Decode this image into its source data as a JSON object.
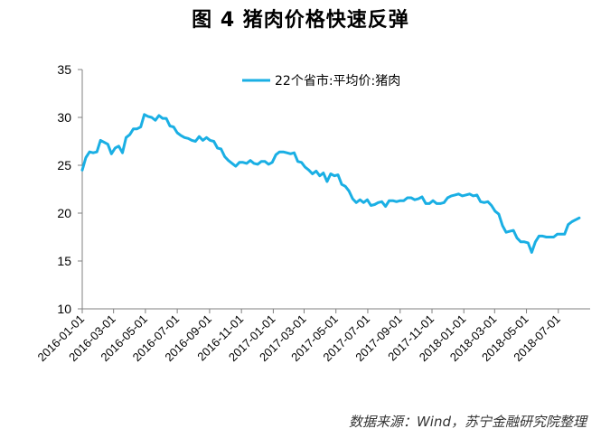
{
  "figure": {
    "title": "图 4  猪肉价格快速反弹",
    "source": "数据来源：Wind，苏宁金融研究院整理"
  },
  "colors": {
    "series": "#1AAFE4",
    "axis": "#808080",
    "text": "#000000"
  },
  "chart_data": {
    "type": "line",
    "title": "图 4  猪肉价格快速反弹",
    "xlabel": "",
    "ylabel": "",
    "ylim": [
      10,
      35
    ],
    "yticks": [
      "35",
      "30",
      "25",
      "20",
      "15",
      "10"
    ],
    "xlim": [
      "2016-01-01",
      "2018-08-31"
    ],
    "xticks": [
      "2016-01-01",
      "2016-03-01",
      "2016-05-01",
      "2016-07-01",
      "2016-09-01",
      "2016-11-01",
      "2017-01-01",
      "2017-03-01",
      "2017-05-01",
      "2017-07-01",
      "2017-09-01",
      "2017-11-01",
      "2018-01-01",
      "2018-03-01",
      "2018-05-01",
      "2018-07-01"
    ],
    "grid": false,
    "legend": "top-center",
    "series": [
      {
        "name": "22个省市:平均价:猪肉",
        "color": "#1AAFE4",
        "points": [
          [
            "2016-01-01",
            24.5
          ],
          [
            "2016-01-08",
            25.8
          ],
          [
            "2016-01-15",
            26.4
          ],
          [
            "2016-01-22",
            26.3
          ],
          [
            "2016-01-29",
            26.4
          ],
          [
            "2016-02-05",
            27.6
          ],
          [
            "2016-02-12",
            27.4
          ],
          [
            "2016-02-19",
            27.2
          ],
          [
            "2016-02-26",
            26.2
          ],
          [
            "2016-03-04",
            26.8
          ],
          [
            "2016-03-11",
            27.0
          ],
          [
            "2016-03-18",
            26.3
          ],
          [
            "2016-03-25",
            27.9
          ],
          [
            "2016-04-01",
            28.2
          ],
          [
            "2016-04-08",
            28.8
          ],
          [
            "2016-04-15",
            28.8
          ],
          [
            "2016-04-22",
            29.0
          ],
          [
            "2016-04-29",
            30.3
          ],
          [
            "2016-05-06",
            30.1
          ],
          [
            "2016-05-13",
            30.0
          ],
          [
            "2016-05-20",
            29.7
          ],
          [
            "2016-05-27",
            30.2
          ],
          [
            "2016-06-03",
            29.9
          ],
          [
            "2016-06-10",
            29.9
          ],
          [
            "2016-06-17",
            29.1
          ],
          [
            "2016-06-24",
            29.0
          ],
          [
            "2016-07-01",
            28.4
          ],
          [
            "2016-07-08",
            28.1
          ],
          [
            "2016-07-15",
            27.9
          ],
          [
            "2016-07-22",
            27.8
          ],
          [
            "2016-07-29",
            27.6
          ],
          [
            "2016-08-05",
            27.5
          ],
          [
            "2016-08-12",
            28.0
          ],
          [
            "2016-08-19",
            27.6
          ],
          [
            "2016-08-26",
            27.9
          ],
          [
            "2016-09-02",
            27.6
          ],
          [
            "2016-09-09",
            27.5
          ],
          [
            "2016-09-16",
            26.8
          ],
          [
            "2016-09-23",
            26.7
          ],
          [
            "2016-09-30",
            25.9
          ],
          [
            "2016-10-07",
            25.5
          ],
          [
            "2016-10-14",
            25.2
          ],
          [
            "2016-10-21",
            24.9
          ],
          [
            "2016-10-28",
            25.3
          ],
          [
            "2016-11-04",
            25.3
          ],
          [
            "2016-11-11",
            25.2
          ],
          [
            "2016-11-18",
            25.5
          ],
          [
            "2016-11-25",
            25.2
          ],
          [
            "2016-12-02",
            25.1
          ],
          [
            "2016-12-09",
            25.4
          ],
          [
            "2016-12-16",
            25.4
          ],
          [
            "2016-12-23",
            25.1
          ],
          [
            "2016-12-30",
            25.3
          ],
          [
            "2017-01-06",
            26.1
          ],
          [
            "2017-01-13",
            26.4
          ],
          [
            "2017-01-20",
            26.4
          ],
          [
            "2017-01-27",
            26.3
          ],
          [
            "2017-02-03",
            26.2
          ],
          [
            "2017-02-10",
            26.3
          ],
          [
            "2017-02-17",
            25.4
          ],
          [
            "2017-02-24",
            25.3
          ],
          [
            "2017-03-03",
            24.8
          ],
          [
            "2017-03-10",
            24.5
          ],
          [
            "2017-03-17",
            24.1
          ],
          [
            "2017-03-24",
            24.4
          ],
          [
            "2017-03-31",
            23.9
          ],
          [
            "2017-04-07",
            24.2
          ],
          [
            "2017-04-14",
            23.3
          ],
          [
            "2017-04-21",
            24.1
          ],
          [
            "2017-04-28",
            23.9
          ],
          [
            "2017-05-05",
            24.0
          ],
          [
            "2017-05-12",
            23.0
          ],
          [
            "2017-05-19",
            22.8
          ],
          [
            "2017-05-26",
            22.3
          ],
          [
            "2017-06-02",
            21.5
          ],
          [
            "2017-06-09",
            21.1
          ],
          [
            "2017-06-16",
            21.4
          ],
          [
            "2017-06-23",
            21.1
          ],
          [
            "2017-06-30",
            21.4
          ],
          [
            "2017-07-07",
            20.8
          ],
          [
            "2017-07-14",
            20.9
          ],
          [
            "2017-07-21",
            21.1
          ],
          [
            "2017-07-28",
            21.2
          ],
          [
            "2017-08-04",
            20.7
          ],
          [
            "2017-08-11",
            21.3
          ],
          [
            "2017-08-18",
            21.3
          ],
          [
            "2017-08-25",
            21.2
          ],
          [
            "2017-09-01",
            21.3
          ],
          [
            "2017-09-08",
            21.3
          ],
          [
            "2017-09-15",
            21.6
          ],
          [
            "2017-09-22",
            21.6
          ],
          [
            "2017-09-29",
            21.4
          ],
          [
            "2017-10-06",
            21.5
          ],
          [
            "2017-10-13",
            21.7
          ],
          [
            "2017-10-20",
            21.0
          ],
          [
            "2017-10-27",
            21.0
          ],
          [
            "2017-11-03",
            21.3
          ],
          [
            "2017-11-10",
            21.0
          ],
          [
            "2017-11-17",
            21.0
          ],
          [
            "2017-11-24",
            21.1
          ],
          [
            "2017-12-01",
            21.6
          ],
          [
            "2017-12-08",
            21.8
          ],
          [
            "2017-12-15",
            21.9
          ],
          [
            "2017-12-22",
            22.0
          ],
          [
            "2017-12-29",
            21.8
          ],
          [
            "2018-01-05",
            21.9
          ],
          [
            "2018-01-12",
            22.0
          ],
          [
            "2018-01-19",
            21.8
          ],
          [
            "2018-01-26",
            21.9
          ],
          [
            "2018-02-02",
            21.2
          ],
          [
            "2018-02-09",
            21.1
          ],
          [
            "2018-02-16",
            21.2
          ],
          [
            "2018-02-23",
            20.8
          ],
          [
            "2018-03-02",
            20.2
          ],
          [
            "2018-03-09",
            19.9
          ],
          [
            "2018-03-16",
            18.7
          ],
          [
            "2018-03-23",
            18.0
          ],
          [
            "2018-03-30",
            18.1
          ],
          [
            "2018-04-06",
            18.2
          ],
          [
            "2018-04-13",
            17.4
          ],
          [
            "2018-04-20",
            17.0
          ],
          [
            "2018-04-27",
            17.0
          ],
          [
            "2018-05-04",
            16.9
          ],
          [
            "2018-05-11",
            15.9
          ],
          [
            "2018-05-18",
            17.0
          ],
          [
            "2018-05-25",
            17.6
          ],
          [
            "2018-06-01",
            17.6
          ],
          [
            "2018-06-08",
            17.5
          ],
          [
            "2018-06-15",
            17.5
          ],
          [
            "2018-06-22",
            17.5
          ],
          [
            "2018-06-29",
            17.8
          ],
          [
            "2018-07-06",
            17.8
          ],
          [
            "2018-07-13",
            17.8
          ],
          [
            "2018-07-20",
            18.8
          ],
          [
            "2018-07-27",
            19.1
          ],
          [
            "2018-08-03",
            19.3
          ],
          [
            "2018-08-10",
            19.5
          ]
        ]
      }
    ]
  }
}
